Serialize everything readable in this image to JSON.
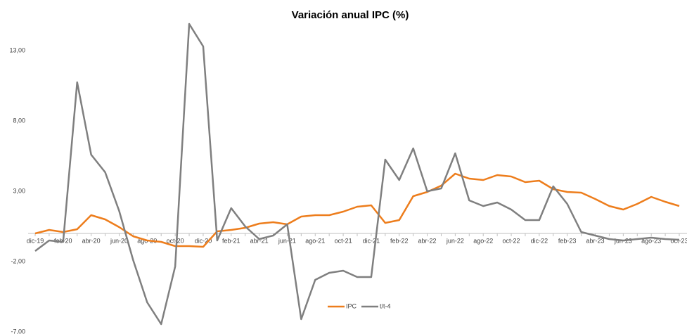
{
  "chart_data": {
    "type": "line",
    "title": "Variación anual IPC (%)",
    "categories": [
      "dic-19",
      null,
      "feb-20",
      null,
      "abr-20",
      null,
      "jun-20",
      null,
      "ago-20",
      null,
      "oct-20",
      null,
      "dic-20",
      null,
      "feb-21",
      null,
      "abr-21",
      null,
      "jun-21",
      null,
      "ago-21",
      null,
      "oct-21",
      null,
      "dic-21",
      null,
      "feb-22",
      null,
      "abr-22",
      null,
      "jun-22",
      null,
      "ago-22",
      null,
      "oct-22",
      null,
      "dic-22",
      null,
      "feb-23",
      null,
      "abr-23",
      null,
      "jun-23",
      null,
      "ago-23",
      null,
      "oct-23"
    ],
    "series": [
      {
        "name": "IPC",
        "color": "#ed7d1c",
        "values": [
          0,
          0.25,
          0.1,
          0.3,
          1.3,
          1.0,
          0.45,
          -0.2,
          -0.5,
          -0.6,
          -0.9,
          -0.9,
          -0.95,
          0.15,
          0.25,
          0.4,
          0.7,
          0.8,
          0.65,
          1.2,
          1.3,
          1.3,
          1.55,
          1.9,
          2.0,
          0.75,
          0.95,
          2.65,
          2.95,
          3.4,
          4.25,
          3.9,
          3.8,
          4.15,
          4.05,
          3.65,
          3.75,
          3.15,
          2.95,
          2.9,
          2.45,
          1.95,
          1.7,
          2.1,
          2.6,
          2.25,
          1.95
        ]
      },
      {
        "name": "t/t-4",
        "color": "#7f7f7f",
        "values": [
          -1.25,
          -0.5,
          -0.6,
          10.75,
          5.6,
          4.35,
          1.6,
          -1.9,
          -4.9,
          -6.45,
          -2.35,
          14.9,
          13.3,
          -0.5,
          1.8,
          0.5,
          -0.4,
          -0.15,
          0.65,
          -6.1,
          -3.3,
          -2.8,
          -2.65,
          -3.1,
          -3.1,
          5.25,
          3.8,
          6.05,
          3.0,
          3.2,
          5.7,
          2.35,
          1.95,
          2.2,
          1.7,
          0.95,
          0.95,
          3.35,
          2.1,
          0.1,
          -0.15,
          -0.4,
          -0.5,
          -0.4,
          -0.3,
          -0.4,
          -0.45
        ]
      }
    ],
    "ylim": [
      -7,
      15
    ],
    "yticks": [
      {
        "value": -7,
        "label": "-7,00"
      },
      {
        "value": -2,
        "label": "-2,00"
      },
      {
        "value": 3,
        "label": "3,00"
      },
      {
        "value": 8,
        "label": "8,00"
      },
      {
        "value": 13,
        "label": "13,00"
      }
    ],
    "legend": "bottom"
  }
}
